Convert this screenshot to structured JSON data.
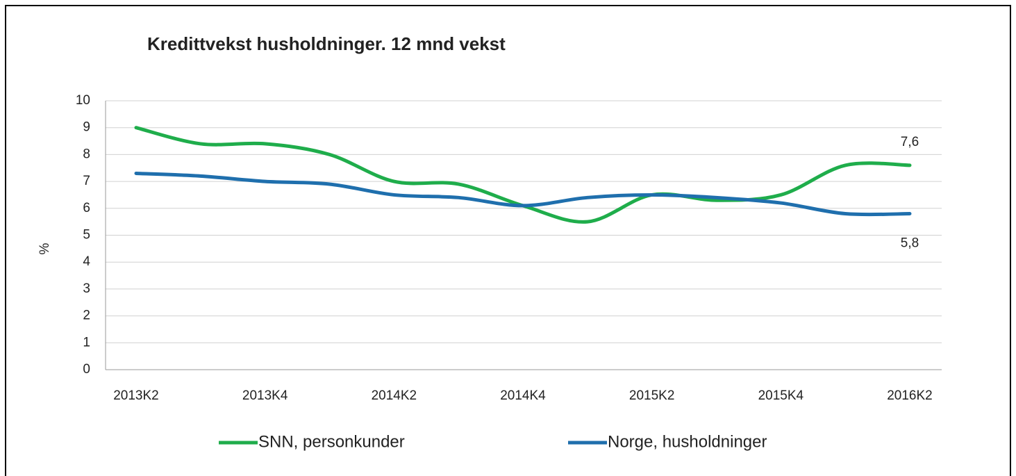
{
  "chart_data": {
    "type": "line",
    "title": "Kredittvekst husholdninger.  12 mnd vekst",
    "y_label": "%",
    "categories": [
      "2013K2",
      null,
      "2013K4",
      null,
      "2014K2",
      null,
      "2014K4",
      null,
      "2015K2",
      null,
      "2015K4",
      null,
      "2016K2"
    ],
    "series": [
      {
        "name": "SNN, personkunder",
        "color": "#1fad4b",
        "values": [
          9.0,
          8.4,
          8.4,
          8.0,
          7.0,
          6.9,
          6.1,
          5.5,
          6.5,
          6.3,
          6.5,
          7.6,
          7.6
        ],
        "value_labels": [
          null,
          null,
          null,
          null,
          null,
          null,
          null,
          null,
          null,
          null,
          null,
          null,
          "7,6"
        ]
      },
      {
        "name": "Norge, husholdninger",
        "color": "#1f6fad",
        "values": [
          7.3,
          7.2,
          7.0,
          6.9,
          6.5,
          6.4,
          6.1,
          6.4,
          6.5,
          6.4,
          6.2,
          5.8,
          5.8
        ],
        "value_labels": [
          null,
          null,
          null,
          null,
          null,
          null,
          null,
          null,
          null,
          null,
          null,
          null,
          "5,8"
        ]
      }
    ],
    "ylim": [
      0,
      10
    ],
    "yticks": [
      0,
      1,
      2,
      3,
      4,
      5,
      6,
      7,
      8,
      9,
      10
    ],
    "grid": true,
    "legend": "bottom"
  }
}
